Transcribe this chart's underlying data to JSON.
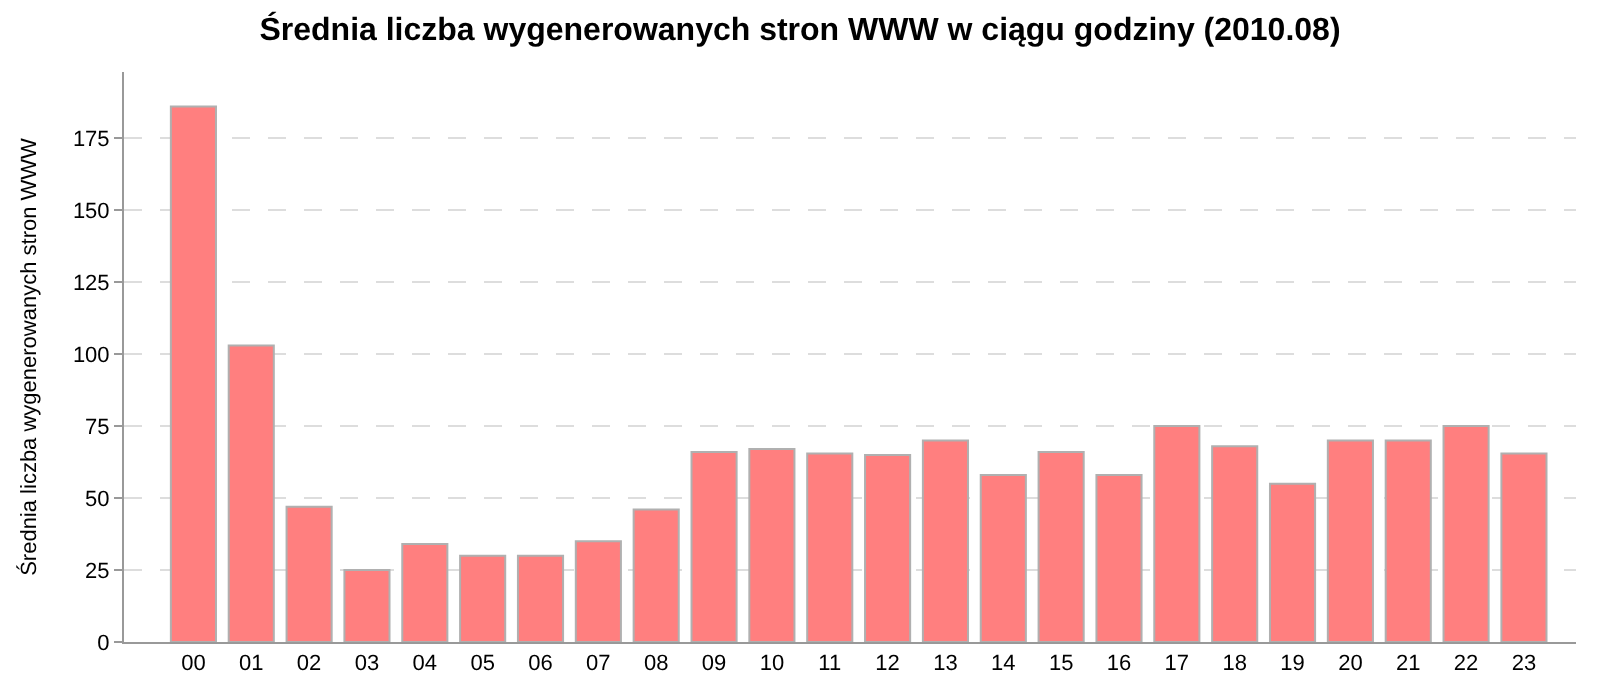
{
  "chart_data": {
    "type": "bar",
    "title": "Średnia liczba wygenerowanych stron WWW w ciągu godziny (2010.08)",
    "ylabel": "Średnia liczba wygenerowanych stron WWW",
    "categories": [
      "00",
      "01",
      "02",
      "03",
      "04",
      "05",
      "06",
      "07",
      "08",
      "09",
      "10",
      "11",
      "12",
      "13",
      "14",
      "15",
      "16",
      "17",
      "18",
      "19",
      "20",
      "21",
      "22",
      "23"
    ],
    "values": [
      186,
      103,
      47,
      25,
      34,
      30,
      30,
      35,
      46,
      66,
      67,
      65.5,
      65,
      70,
      58,
      66,
      58,
      75,
      68,
      55,
      70,
      70,
      75,
      65.5
    ],
    "color": "#ff7f7f",
    "ylim": [
      0,
      198
    ],
    "yticks": [
      0,
      25,
      50,
      75,
      100,
      125,
      150,
      175
    ],
    "grid": "y",
    "legend": false
  }
}
